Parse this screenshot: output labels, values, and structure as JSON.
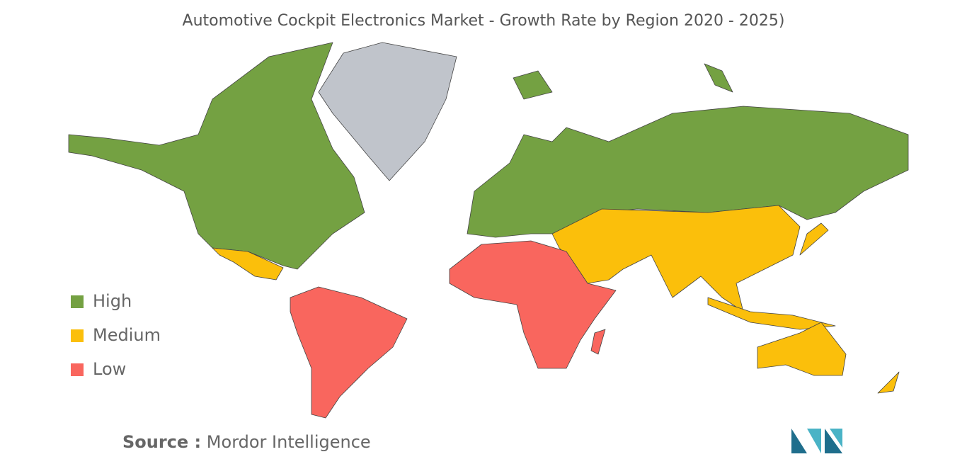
{
  "header": {
    "title": "Automotive Cockpit Electronics Market - Growth Rate by Region 2020 - 2025)"
  },
  "legend": [
    {
      "label": "High",
      "color": "#74a142"
    },
    {
      "label": "Medium",
      "color": "#fbbf0b"
    },
    {
      "label": "Low",
      "color": "#f9665e"
    }
  ],
  "source": {
    "label": "Source :",
    "text": "Mordor Intelligence"
  }
}
